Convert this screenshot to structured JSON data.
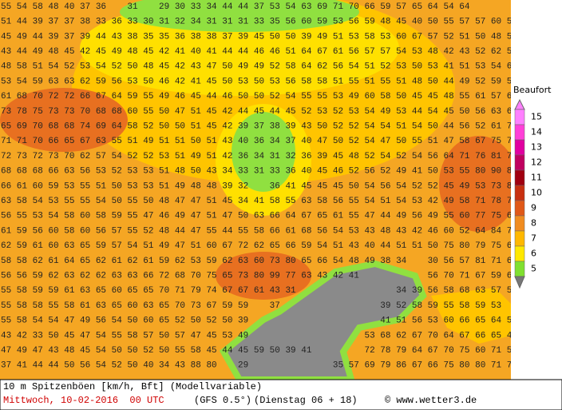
{
  "map": {
    "rows": [
      "55 54 58 48 40 37 36    31    29 30 33 34 44 44 37 53 54 63 69 71 70 66 59 57 65 64 54 64",
      "51 44 39 37 37 38 33 36 33 30 31 32 34 31 31 31 33 35 56 60 59 53 56 59 48 45 40 50 55 57 57 60 58 56",
      "45 49 44 39 37 39 44 43 38 35 35 36 38 38 37 39 45 50 50 39 49 51 53 58 53 60 67 57 52 51 50 48 53 53",
      "43 44 49 48 45 42 45 49 48 45 42 41 40 41 44 44 46 46 51 64 67 61 56 57 57 54 53 48 42 43 52 62 52 55",
      "48 58 51 54 52 53 54 52 50 48 45 42 43 47 50 49 49 52 58 64 62 56 54 51 52 53 50 53 41 51 53 54 62 57",
      "53 54 59 63 63 62 59 56 53 50 46 42 41 45 50 53 50 53 56 58 58 51 55 51 55 51 48 50 44 49 52 59 55 55",
      "61 68 70 72 72 66 67 64 59 55 49 46 45 44 46 50 50 52 54 55 55 53 49 60 58 50 45 45 48 55 61 57 65 54",
      "73 78 75 73 73 70 68 68 60 55 50 47 51 45 42 44 45 44 45 52 53 52 53 54 49 53 44 54 45 50 56 63 65 57",
      "65 69 70 68 68 74 69 64 58 52 50 50 51 45 42 39 37 38 39 43 50 52 52 54 54 51 54 50 44 56 52 61 70 73",
      "71 71 70 66 65 67 63 55 51 49 51 51 50 51 43 40 36 34 37 40 47 50 52 54 47 50 55 51 47 58 67 75 79 76",
      "72 73 72 73 70 62 57 54 52 52 53 51 49 51 42 36 34 31 32 36 39 45 48 52 54 52 54 56 64 71 76 81 77 76",
      "68 68 68 66 63 56 53 52 53 53 51 48 50 43 34 33 31 33 36 40 45 46 52 56 52 49 41 50 53 55 80 90 80 85",
      "66 61 60 59 53 55 51 50 53 53 51 49 48 48 39 32    36 41 45 45 45 50 54 56 54 52 52 45 49 53 73 82 91",
      "63 58 54 53 55 55 54 50 55 50 48 47 47 51 45 34 41 58 55 63 58 56 55 54 51 54 53 42 49 58 71 78 70 76",
      "56 55 53 54 58 60 58 59 55 47 46 49 47 51 47 50 63 66 64 67 65 61 55 47 44 49 56 49 55 60 77 75 64 64",
      "61 59 56 60 58 60 56 57 55 52 48 44 47 55 44 55 58 66 61 68 56 54 53 43 48 43 42 46 60 52 64 84 76 69",
      "62 59 61 60 63 65 59 57 54 51 49 47 51 60 67 72 62 65 66 59 54 51 43 40 44 51 51 50 75 80 79 75 66 66",
      "58 58 62 61 64 65 62 61 62 61 59 62 53 59 62 63 60 73 80 65 66 54 48 49 38 34    30 56 57 81 71 64",
      "56 56 59 62 63 62 62 63 63 66 72 68 70 75 65 73 80 99 77 63 43 42 41             56 70 71 67 59 64",
      "55 58 59 59 61 63 65 60 65 65 70 71 79 74 67 67 61 43 31                   34 39 56 58 68 63 57 59",
      "55 58 58 55 58 61 63 65 60 63 65 70 73 67 59 59    37                   39 52 58 59 55 58 59 53",
      "55 58 54 54 47 49 56 54 50 60 65 52 50 52 50 39                         41 51 56 53 60 66 65 64 51",
      "43 42 33 50 45 47 54 55 58 57 50 57 47 45 53 49                      53 68 62 67 70 64 67 66 65 45 54",
      "47 49 47 43 48 45 54 50 50 52 50 55 58 45 44 45 59 50 39 41          72 78 79 64 67 70 75 60 71 58 51",
      "37 41 44 44 50 56 54 52 50 40 34 43 88 80    29                35 57 69 79 86 67 66 75 80 80 71 71 68"
    ]
  },
  "legend": {
    "title": "Beaufort",
    "levels": [
      {
        "label": 15,
        "color": "#ff80ff"
      },
      {
        "label": 14,
        "color": "#ff40d8"
      },
      {
        "label": 13,
        "color": "#e000a0"
      },
      {
        "label": 12,
        "color": "#c00060"
      },
      {
        "label": 11,
        "color": "#a00010"
      },
      {
        "label": 10,
        "color": "#c83010"
      },
      {
        "label": 9,
        "color": "#e05818"
      },
      {
        "label": 8,
        "color": "#f08c20"
      },
      {
        "label": 7,
        "color": "#ffb800"
      },
      {
        "label": 6,
        "color": "#ffe800"
      },
      {
        "label": 5,
        "color": "#80e030"
      }
    ]
  },
  "footer": {
    "line1": "10 m Spitzenböen [km/h, Bft] (Modellvariable)",
    "date": "Mittwoch, 10-02-2016  00 UTC",
    "model": "(GFS 0.5°)",
    "run": "(Dienstag 06 + 18)",
    "credit": "© www.wetter3.de"
  }
}
